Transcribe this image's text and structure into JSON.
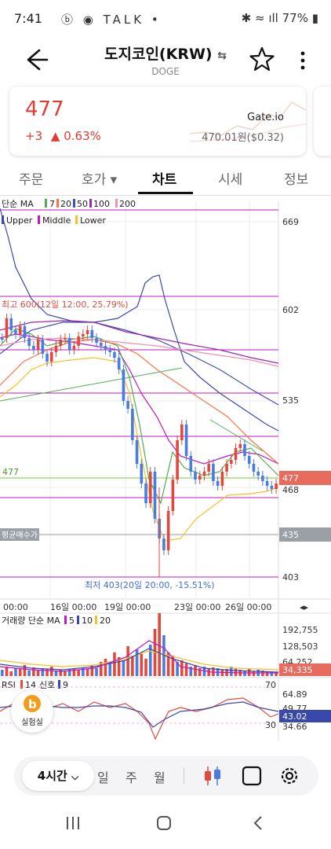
{
  "status_bar": {
    "time": "7:41",
    "battery": "77%",
    "left_icons": "ⓑ ◉ TALK •",
    "right_icons": "✱ ≈ ıll"
  },
  "header": {
    "title": "도지코인(KRW)",
    "subtitle": "DOGE",
    "swap_icon": "⇆"
  },
  "price_card": {
    "price": "477",
    "change_abs": "+3",
    "change_pct": "▲ 0.63%",
    "exchange": "Gate.io",
    "exchange_price": "470.01원($0.32)"
  },
  "tabs": [
    {
      "label": "주문"
    },
    {
      "label": "호가 ▾"
    },
    {
      "label": "차트",
      "active": true
    },
    {
      "label": "시세"
    },
    {
      "label": "정보"
    }
  ],
  "chart": {
    "ma_legend": {
      "label": "단순 MA",
      "periods": [
        "7",
        "20",
        "50",
        "100",
        "200"
      ],
      "colors": [
        "#4caf50",
        "#ff7043",
        "#3f51b5",
        "#9c27b0",
        "#f48fb1"
      ]
    },
    "bb_legend": {
      "upper": "Upper",
      "middle": "Middle",
      "lower": "Lower",
      "colors": [
        "#3949ab",
        "#c218c2",
        "#f6c028"
      ]
    },
    "price_axis": [
      "669",
      "602",
      "535",
      "477",
      "468",
      "435",
      "403"
    ],
    "current_price_label": "477",
    "avg_buy_label": "평균매수가",
    "avg_buy_price": "435",
    "high_annotation": "최고 600(12일 12:00, 25.79%)",
    "low_annotation": "최저 403(20일 20:00, -15.51%)",
    "ref_line_label": "477",
    "time_axis": [
      "00:00",
      "16일 00:00",
      "19일 00:00",
      "23일 00:00",
      "26일 00:00"
    ],
    "scroll_arrows": "◂▸",
    "colors": {
      "up": "#e0493e",
      "down": "#4a7be0",
      "level_line": "#c218c2",
      "avg_line": "#888888"
    }
  },
  "volume": {
    "legend": {
      "label": "거래량 단순 MA",
      "periods": [
        "5",
        "10",
        "20"
      ],
      "colors": [
        "#c218c2",
        "#3949ab",
        "#f6c028"
      ]
    },
    "axis": [
      "192,755",
      "128,503",
      "64,252"
    ],
    "current_label": "34,335"
  },
  "rsi": {
    "legend": {
      "label": "RSI",
      "period": "14",
      "signal_label": "신호",
      "signal_period": "9"
    },
    "axis": [
      "70",
      "64.89",
      "49.77",
      "34.66",
      "30"
    ],
    "current_label": "43.02"
  },
  "talk_button": {
    "label": "실험실"
  },
  "toolbar": {
    "timeframe": "4시간",
    "options": [
      "일",
      "주",
      "월"
    ]
  }
}
